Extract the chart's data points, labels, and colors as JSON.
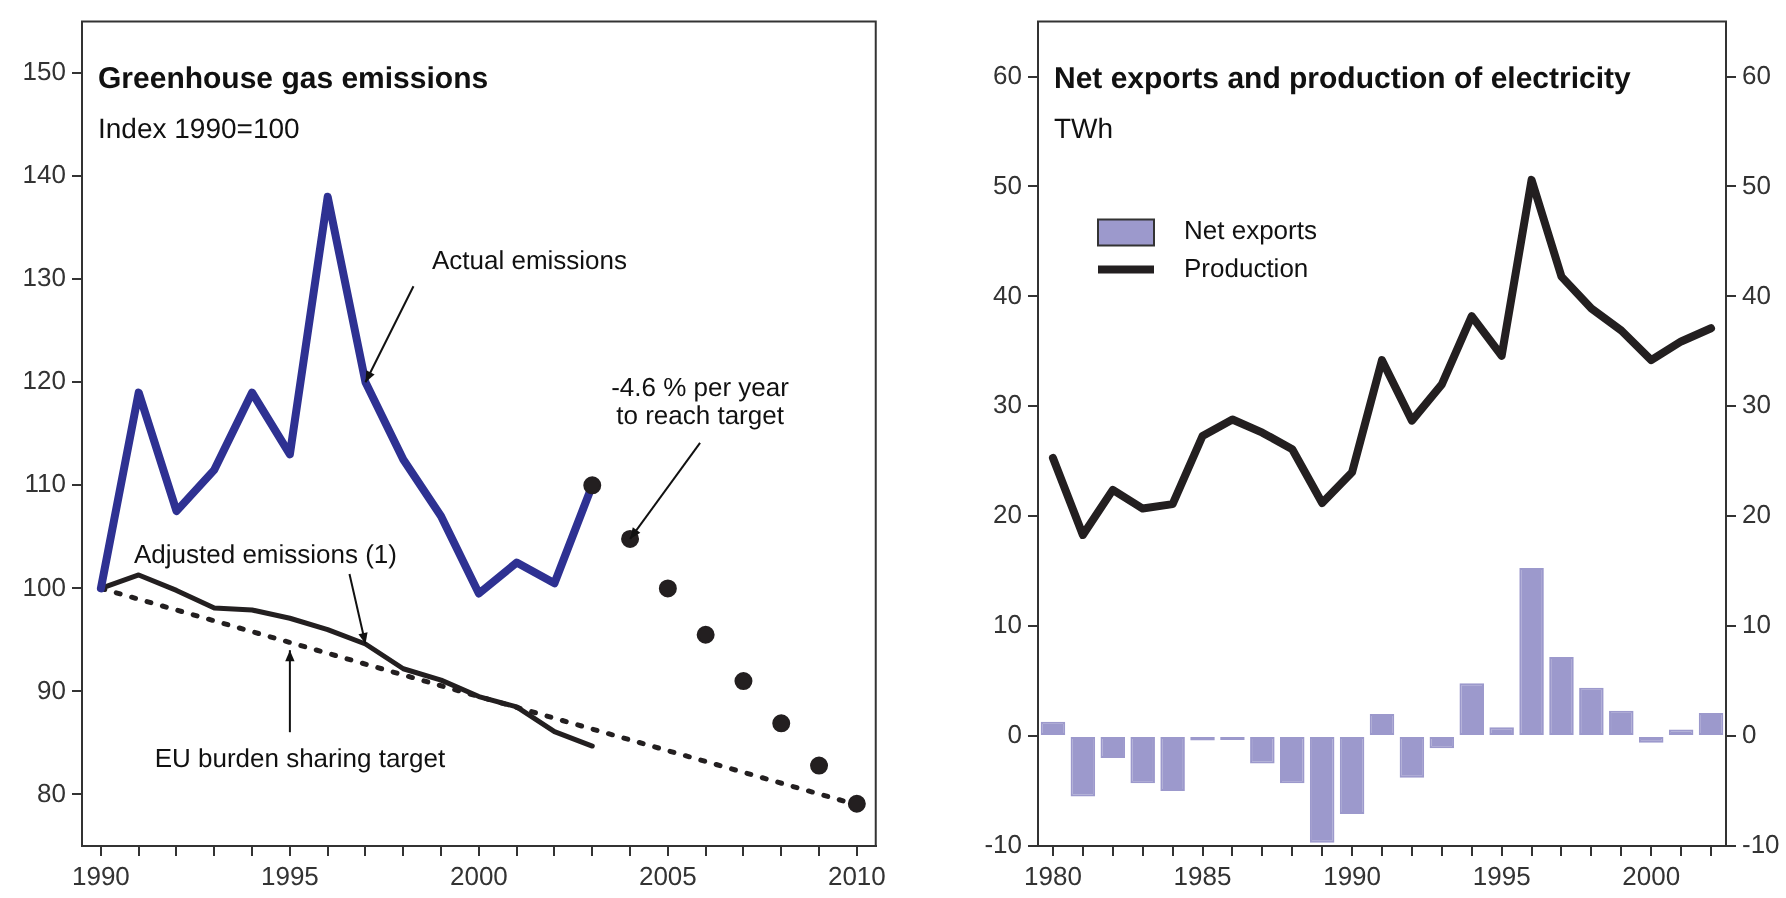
{
  "chart_data": [
    {
      "type": "line",
      "title": "Greenhouse gas emissions",
      "subtitle": "Index 1990=100",
      "xlim": [
        1989.5,
        2010.5
      ],
      "ylim": [
        75,
        155
      ],
      "xticks": [
        1990,
        {
          "value": 1991,
          "label": null
        },
        {
          "value": 1992,
          "label": null
        },
        {
          "value": 1993,
          "label": null
        },
        {
          "value": 1994,
          "label": null
        },
        1995,
        {
          "value": 1996,
          "label": null
        },
        {
          "value": 1997,
          "label": null
        },
        {
          "value": 1998,
          "label": null
        },
        {
          "value": 1999,
          "label": null
        },
        2000,
        {
          "value": 2001,
          "label": null
        },
        {
          "value": 2002,
          "label": null
        },
        {
          "value": 2003,
          "label": null
        },
        {
          "value": 2004,
          "label": null
        },
        2005,
        {
          "value": 2006,
          "label": null
        },
        {
          "value": 2007,
          "label": null
        },
        {
          "value": 2008,
          "label": null
        },
        {
          "value": 2009,
          "label": null
        },
        2010
      ],
      "yticks": [
        80,
        90,
        100,
        110,
        120,
        130,
        140,
        150
      ],
      "grid": false,
      "legend": false,
      "marker": "none",
      "series": [
        {
          "color": "#2e3192",
          "x": [
            1990,
            1991,
            1992,
            1993,
            1994,
            1995,
            1996,
            1997,
            1998,
            1999,
            2000,
            2001,
            2002,
            2003
          ],
          "values": [
            100,
            119,
            107.5,
            111.5,
            119,
            113,
            138,
            120,
            112.5,
            107,
            99.5,
            102.5,
            100.5,
            110
          ]
        },
        {
          "color": "#231f20",
          "x": [
            1990,
            1991,
            1992,
            1993,
            1994,
            1995,
            1996,
            1997,
            1998,
            1999,
            2000,
            2001,
            2002,
            2003
          ],
          "values": [
            100,
            101.3,
            99.8,
            98.1,
            97.9,
            97.1,
            96,
            94.6,
            92.2,
            91.1,
            89.5,
            88.5,
            86.1,
            84.7
          ]
        },
        {
          "color": "#231f20",
          "line_style": "dotted",
          "x": [
            1990,
            2010
          ],
          "values": [
            100,
            79
          ]
        },
        {
          "type": "scatter",
          "marker": "circle",
          "color": "#231f20",
          "x": [
            2003,
            2004,
            2005,
            2006,
            2007,
            2008,
            2009,
            2010
          ],
          "values": [
            110,
            104.8,
            100,
            95.5,
            91,
            86.9,
            82.8,
            79.1
          ]
        }
      ],
      "annotations": [
        {
          "text": "Actual emissions",
          "x": 1997,
          "y": 120
        },
        {
          "text": "-4.6 % per year\nto reach target",
          "x": 2004,
          "y": 104.8
        },
        {
          "text": "Adjusted emissions (1)",
          "x": 1997,
          "y": 94.6
        },
        {
          "text": "EU burden sharing target",
          "x": 1995,
          "y": 94
        }
      ]
    },
    {
      "type": "bar",
      "title": "Net exports and production of electricity",
      "subtitle": "TWh",
      "xlim": [
        1979.5,
        2002.5
      ],
      "ylim": [
        -10,
        65
      ],
      "y2lim": [
        -10,
        65
      ],
      "xticks": [
        1980,
        {
          "value": 1981,
          "label": null
        },
        {
          "value": 1982,
          "label": null
        },
        {
          "value": 1983,
          "label": null
        },
        {
          "value": 1984,
          "label": null
        },
        1985,
        {
          "value": 1986,
          "label": null
        },
        {
          "value": 1987,
          "label": null
        },
        {
          "value": 1988,
          "label": null
        },
        {
          "value": 1989,
          "label": null
        },
        1990,
        {
          "value": 1991,
          "label": null
        },
        {
          "value": 1992,
          "label": null
        },
        {
          "value": 1993,
          "label": null
        },
        {
          "value": 1994,
          "label": null
        },
        1995,
        {
          "value": 1996,
          "label": null
        },
        {
          "value": 1997,
          "label": null
        },
        {
          "value": 1998,
          "label": null
        },
        {
          "value": 1999,
          "label": null
        },
        2000,
        {
          "value": 2001,
          "label": null
        },
        {
          "value": 2002,
          "label": null
        }
      ],
      "yticks": [
        -10,
        0,
        10,
        20,
        30,
        40,
        50,
        60
      ],
      "y2ticks": [
        -10,
        0,
        10,
        20,
        30,
        40,
        50,
        60
      ],
      "grid": false,
      "legend": "top left",
      "x": [
        1980,
        1981,
        1982,
        1983,
        1984,
        1985,
        1986,
        1987,
        1988,
        1989,
        1990,
        1991,
        1992,
        1993,
        1994,
        1995,
        1996,
        1997,
        1998,
        1999,
        2000,
        2001,
        2002
      ],
      "series": [
        {
          "name": "Net exports",
          "color": "#9c99cc",
          "values": [
            1.3,
            -5.5,
            -2,
            -4.3,
            -5,
            -0.4,
            -0.1,
            -2.5,
            -4.3,
            -9.7,
            -7.1,
            2,
            -3.8,
            -1.1,
            4.8,
            0.8,
            15.3,
            7.2,
            4.4,
            2.3,
            -0.6,
            0.6,
            2.1
          ]
        },
        {
          "name": "Production",
          "type": "line",
          "color": "#231f20",
          "values": [
            25.3,
            18.3,
            22.4,
            20.7,
            21.1,
            27.3,
            28.8,
            27.6,
            26.1,
            21.2,
            24,
            34.2,
            28.7,
            32,
            38.2,
            34.6,
            50.6,
            41.8,
            38.9,
            36.9,
            34.2,
            35.9,
            37.1
          ]
        }
      ]
    }
  ]
}
